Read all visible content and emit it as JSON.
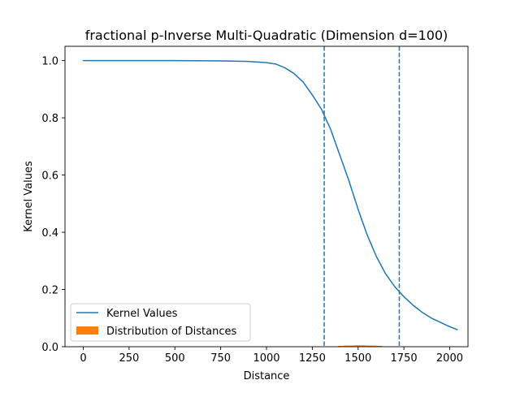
{
  "chart_data": {
    "type": "line",
    "title": "fractional p-Inverse Multi-Quadratic (Dimension d=100)",
    "xlabel": "Distance",
    "ylabel": "Kernel Values",
    "xlim": [
      -100,
      2100
    ],
    "ylim": [
      0,
      1.05
    ],
    "xticks": [
      0,
      250,
      500,
      750,
      1000,
      1250,
      1500,
      1750,
      2000
    ],
    "yticks": [
      0.0,
      0.2,
      0.4,
      0.6,
      0.8,
      1.0
    ],
    "xtick_labels": [
      "0",
      "250",
      "500",
      "750",
      "1000",
      "1250",
      "1500",
      "1750",
      "2000"
    ],
    "ytick_labels": [
      "0.0",
      "0.2",
      "0.4",
      "0.6",
      "0.8",
      "1.0"
    ],
    "grid": false,
    "legend_placement": "lower-left",
    "colors": {
      "kernel": "#1f77b4",
      "distribution": "#ff7f0e"
    },
    "series": [
      {
        "name": "Kernel Values",
        "kind": "line",
        "x": [
          0,
          250,
          500,
          750,
          900,
          1000,
          1050,
          1100,
          1150,
          1200,
          1250,
          1300,
          1350,
          1400,
          1450,
          1500,
          1550,
          1600,
          1650,
          1700,
          1750,
          1800,
          1850,
          1900,
          1950,
          2000,
          2040
        ],
        "y": [
          1.0,
          1.0,
          1.0,
          0.999,
          0.997,
          0.993,
          0.988,
          0.975,
          0.955,
          0.925,
          0.88,
          0.83,
          0.76,
          0.67,
          0.58,
          0.48,
          0.39,
          0.315,
          0.255,
          0.21,
          0.175,
          0.145,
          0.12,
          0.1,
          0.085,
          0.07,
          0.06
        ]
      },
      {
        "name": "Distribution of Distances",
        "kind": "histogram",
        "bins": [
          {
            "x0": 1390,
            "x1": 1420,
            "height": 0.003
          },
          {
            "x0": 1420,
            "x1": 1450,
            "height": 0.004
          },
          {
            "x0": 1450,
            "x1": 1480,
            "height": 0.004
          },
          {
            "x0": 1480,
            "x1": 1510,
            "height": 0.005
          },
          {
            "x0": 1510,
            "x1": 1540,
            "height": 0.005
          },
          {
            "x0": 1540,
            "x1": 1570,
            "height": 0.004
          },
          {
            "x0": 1570,
            "x1": 1600,
            "height": 0.004
          },
          {
            "x0": 1600,
            "x1": 1630,
            "height": 0.003
          }
        ]
      }
    ],
    "vlines": [
      {
        "x": 1315,
        "style": "dashed"
      },
      {
        "x": 1725,
        "style": "dashed"
      }
    ]
  }
}
